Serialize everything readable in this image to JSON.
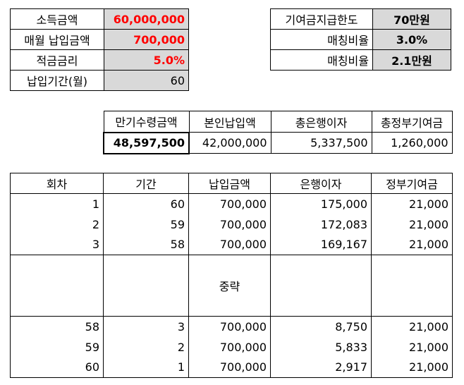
{
  "inputs": {
    "income_label": "소득금액",
    "income_value": "60,000,000",
    "monthly_label": "매월 납입금액",
    "monthly_value": "700,000",
    "rate_label": "적금금리",
    "rate_value": "5.0%",
    "period_label": "납입기간(월)",
    "period_value": "60"
  },
  "matching": {
    "limit_label": "기여금지급한도",
    "limit_value": "70만원",
    "ratio_label": "매칭비율",
    "ratio_value": "3.0%",
    "amount_label": "매칭비율",
    "amount_value": "2.1만원"
  },
  "summary": {
    "headers": [
      "만기수령금액",
      "본인납입액",
      "총은행이자",
      "총정부기여금"
    ],
    "values": [
      "48,597,500",
      "42,000,000",
      "5,337,500",
      "1,260,000"
    ]
  },
  "schedule": {
    "headers": [
      "회차",
      "기간",
      "납입금액",
      "은행이자",
      "정부기여금"
    ],
    "rows_top": [
      [
        "1",
        "60",
        "700,000",
        "175,000",
        "21,000"
      ],
      [
        "2",
        "59",
        "700,000",
        "172,083",
        "21,000"
      ],
      [
        "3",
        "58",
        "700,000",
        "169,167",
        "21,000"
      ]
    ],
    "omitted_label": "중략",
    "rows_bottom": [
      [
        "58",
        "3",
        "700,000",
        "8,750",
        "21,000"
      ],
      [
        "59",
        "2",
        "700,000",
        "5,833",
        "21,000"
      ],
      [
        "60",
        "1",
        "700,000",
        "2,917",
        "21,000"
      ]
    ]
  }
}
